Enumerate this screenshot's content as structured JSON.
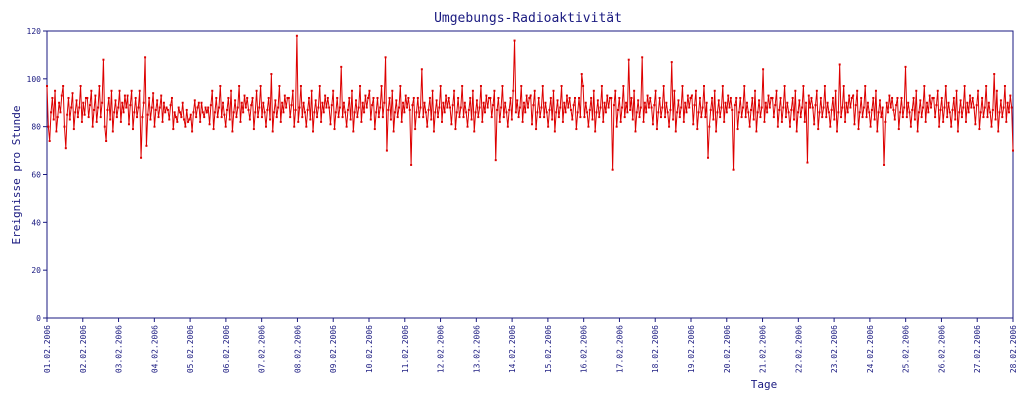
{
  "chart_data": {
    "type": "line",
    "title": "Umgebungs-Radioaktivität",
    "xlabel": "Tage",
    "ylabel": "Ereignisse pro Stunde",
    "ylim": [
      0,
      120
    ],
    "yticks": [
      0,
      20,
      40,
      60,
      80,
      100,
      120
    ],
    "x_start": "01.02.2006",
    "x_end": "28.02.2006",
    "xtick_labels": [
      "01.02.2006",
      "02.02.2006",
      "03.02.2006",
      "04.02.2006",
      "05.02.2006",
      "06.02.2006",
      "07.02.2006",
      "08.02.2006",
      "09.02.2006",
      "10.02.2006",
      "11.02.2006",
      "12.02.2006",
      "13.02.2006",
      "14.02.2006",
      "15.02.2006",
      "16.02.2006",
      "17.02.2006",
      "18.02.2006",
      "19.02.2006",
      "20.02.2006",
      "21.02.2006",
      "22.02.2006",
      "23.02.2006",
      "24.02.2006",
      "25.02.2006",
      "26.02.2006",
      "27.02.2006",
      "28.02.2006"
    ],
    "grid": false,
    "colors": {
      "series": "#dd0000",
      "axis": "#1a1a80",
      "text": "#1a1a80"
    },
    "series": [
      {
        "values": [
          97,
          80,
          74,
          86,
          92,
          83,
          95,
          78,
          84,
          90,
          86,
          93,
          97,
          80,
          71,
          85,
          92,
          83,
          88,
          94,
          79,
          86,
          91,
          84,
          88,
          97,
          82,
          90,
          85,
          92,
          92,
          84,
          89,
          95,
          80,
          87,
          93,
          82,
          88,
          97,
          84,
          90,
          108,
          80,
          74,
          87,
          92,
          83,
          95,
          78,
          86,
          91,
          84,
          88,
          95,
          82,
          90,
          86,
          93,
          88,
          93,
          81,
          89,
          95,
          79,
          86,
          92,
          84,
          88,
          95,
          67,
          84,
          90,
          109,
          72,
          85,
          92,
          83,
          88,
          94,
          80,
          87,
          91,
          84,
          88,
          93,
          82,
          90,
          86,
          88,
          87,
          83,
          89,
          92,
          79,
          86,
          84,
          82,
          88,
          86,
          84,
          90,
          83,
          80,
          87,
          82,
          83,
          85,
          78,
          86,
          91,
          84,
          88,
          90,
          82,
          90,
          86,
          84,
          88,
          86,
          88,
          81,
          89,
          95,
          79,
          86,
          92,
          84,
          88,
          97,
          84,
          90,
          85,
          80,
          87,
          92,
          83,
          95,
          78,
          86,
          91,
          84,
          88,
          97,
          82,
          90,
          86,
          93,
          88,
          92,
          87,
          83,
          89,
          92,
          79,
          86,
          95,
          84,
          88,
          97,
          84,
          90,
          86,
          80,
          87,
          92,
          83,
          102,
          78,
          86,
          91,
          84,
          88,
          97,
          82,
          90,
          86,
          93,
          88,
          92,
          92,
          84,
          89,
          95,
          80,
          87,
          118,
          82,
          88,
          97,
          84,
          90,
          86,
          80,
          87,
          92,
          83,
          95,
          78,
          86,
          91,
          84,
          88,
          97,
          82,
          90,
          86,
          93,
          88,
          92,
          88,
          81,
          89,
          95,
          79,
          86,
          92,
          84,
          88,
          105,
          84,
          90,
          86,
          80,
          87,
          92,
          83,
          95,
          78,
          86,
          91,
          84,
          88,
          97,
          82,
          90,
          86,
          93,
          88,
          92,
          95,
          83,
          89,
          92,
          79,
          86,
          92,
          84,
          88,
          97,
          84,
          90,
          109,
          70,
          87,
          92,
          83,
          95,
          78,
          86,
          91,
          84,
          88,
          97,
          82,
          90,
          86,
          93,
          88,
          92,
          87,
          64,
          89,
          92,
          79,
          86,
          92,
          84,
          88,
          104,
          84,
          90,
          86,
          80,
          87,
          92,
          83,
          95,
          78,
          86,
          91,
          84,
          88,
          97,
          82,
          90,
          86,
          93,
          88,
          92,
          88,
          81,
          89,
          95,
          79,
          86,
          92,
          84,
          88,
          97,
          84,
          90,
          86,
          80,
          87,
          92,
          83,
          95,
          78,
          86,
          91,
          84,
          88,
          97,
          82,
          90,
          86,
          93,
          88,
          92,
          92,
          84,
          89,
          95,
          66,
          87,
          92,
          82,
          88,
          97,
          84,
          90,
          86,
          80,
          87,
          92,
          83,
          95,
          116,
          86,
          91,
          84,
          88,
          97,
          82,
          90,
          86,
          93,
          88,
          92,
          93,
          81,
          89,
          95,
          79,
          86,
          92,
          84,
          88,
          97,
          84,
          90,
          86,
          80,
          87,
          92,
          83,
          95,
          78,
          86,
          91,
          84,
          88,
          97,
          82,
          90,
          86,
          93,
          88,
          92,
          87,
          83,
          89,
          92,
          79,
          86,
          92,
          84,
          102,
          97,
          84,
          90,
          86,
          80,
          87,
          92,
          83,
          95,
          78,
          86,
          91,
          84,
          88,
          97,
          82,
          90,
          86,
          93,
          88,
          92,
          92,
          62,
          89,
          95,
          80,
          87,
          92,
          82,
          88,
          97,
          84,
          90,
          86,
          108,
          87,
          92,
          83,
          95,
          78,
          86,
          91,
          84,
          88,
          109,
          82,
          90,
          86,
          93,
          88,
          92,
          88,
          81,
          89,
          95,
          79,
          86,
          92,
          84,
          88,
          97,
          84,
          90,
          86,
          80,
          87,
          107,
          83,
          95,
          78,
          86,
          91,
          84,
          88,
          97,
          82,
          90,
          86,
          93,
          88,
          92,
          93,
          81,
          89,
          95,
          79,
          86,
          92,
          84,
          88,
          97,
          84,
          90,
          67,
          80,
          87,
          92,
          83,
          95,
          78,
          86,
          91,
          84,
          88,
          97,
          82,
          90,
          86,
          93,
          88,
          92,
          87,
          62,
          89,
          92,
          79,
          86,
          92,
          84,
          88,
          97,
          84,
          90,
          86,
          80,
          87,
          92,
          83,
          95,
          78,
          86,
          91,
          84,
          88,
          104,
          82,
          90,
          86,
          93,
          88,
          92,
          92,
          84,
          89,
          95,
          80,
          87,
          92,
          82,
          88,
          97,
          84,
          90,
          86,
          80,
          87,
          92,
          83,
          95,
          78,
          86,
          91,
          84,
          88,
          97,
          82,
          90,
          65,
          93,
          88,
          92,
          88,
          81,
          89,
          95,
          79,
          86,
          92,
          84,
          88,
          97,
          84,
          90,
          86,
          80,
          87,
          92,
          83,
          95,
          78,
          86,
          106,
          84,
          88,
          97,
          82,
          90,
          86,
          93,
          88,
          92,
          93,
          81,
          89,
          95,
          79,
          86,
          92,
          84,
          88,
          97,
          84,
          90,
          86,
          80,
          87,
          92,
          83,
          95,
          78,
          86,
          91,
          84,
          88,
          64,
          82,
          90,
          86,
          93,
          88,
          92,
          87,
          83,
          89,
          92,
          79,
          86,
          92,
          84,
          88,
          105,
          84,
          90,
          86,
          80,
          87,
          92,
          83,
          95,
          78,
          86,
          91,
          84,
          88,
          97,
          82,
          90,
          86,
          93,
          88,
          92,
          92,
          84,
          89,
          95,
          80,
          87,
          92,
          82,
          88,
          97,
          84,
          90,
          86,
          80,
          87,
          92,
          83,
          95,
          78,
          86,
          91,
          84,
          88,
          97,
          82,
          90,
          86,
          93,
          88,
          92,
          88,
          81,
          89,
          95,
          79,
          86,
          92,
          84,
          88,
          97,
          84,
          90,
          86,
          80,
          87,
          102,
          83,
          95,
          78,
          86,
          91,
          84,
          88,
          97,
          82,
          90,
          86,
          93,
          88,
          70
        ]
      }
    ]
  }
}
